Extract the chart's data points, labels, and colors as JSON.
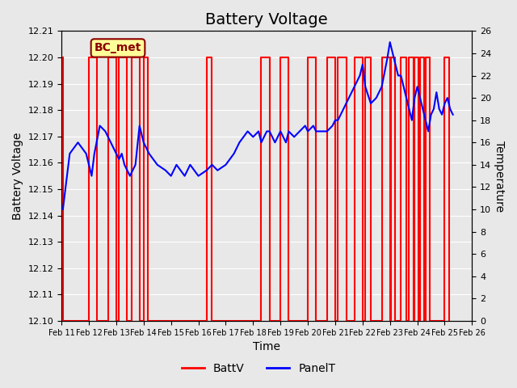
{
  "title": "Battery Voltage",
  "xlabel": "Time",
  "ylabel_left": "Battery Voltage",
  "ylabel_right": "Temperature",
  "ylim_left": [
    12.1,
    12.21
  ],
  "ylim_right": [
    0,
    26
  ],
  "yticks_left": [
    12.1,
    12.11,
    12.12,
    12.13,
    12.14,
    12.15,
    12.16,
    12.17,
    12.18,
    12.19,
    12.2,
    12.21
  ],
  "yticks_right": [
    0,
    2,
    4,
    6,
    8,
    10,
    12,
    14,
    16,
    18,
    20,
    22,
    24,
    26
  ],
  "xlim": [
    0,
    15
  ],
  "xtick_labels": [
    "Feb 11",
    "Feb 12",
    "Feb 13",
    "Feb 14",
    "Feb 15",
    "Feb 16",
    "Feb 17",
    "Feb 18",
    "Feb 19",
    "Feb 20",
    "Feb 21",
    "Feb 22",
    "Feb 23",
    "Feb 24",
    "Feb 25",
    "Feb 26"
  ],
  "annotation_text": "BC_met",
  "annotation_color": "#8B0000",
  "annotation_bg": "#FFFF99",
  "bg_color": "#E8E8E8",
  "plot_bg": "#E8E8E8",
  "grid_color": "white",
  "batt_color": "red",
  "panel_color": "blue",
  "batt_linewidth": 1.5,
  "panel_linewidth": 1.5,
  "title_fontsize": 14,
  "legend_fontsize": 10,
  "battv_data": [
    [
      0.05,
      12.2
    ],
    [
      0.05,
      12.1
    ],
    [
      1.0,
      12.1
    ],
    [
      1.0,
      12.2
    ],
    [
      1.3,
      12.2
    ],
    [
      1.3,
      12.1
    ],
    [
      1.7,
      12.1
    ],
    [
      1.7,
      12.2
    ],
    [
      2.0,
      12.2
    ],
    [
      2.0,
      12.1
    ],
    [
      2.1,
      12.1
    ],
    [
      2.1,
      12.2
    ],
    [
      2.4,
      12.2
    ],
    [
      2.4,
      12.1
    ],
    [
      2.55,
      12.1
    ],
    [
      2.55,
      12.2
    ],
    [
      2.85,
      12.2
    ],
    [
      2.85,
      12.1
    ],
    [
      3.0,
      12.1
    ],
    [
      3.0,
      12.2
    ],
    [
      3.15,
      12.2
    ],
    [
      3.15,
      12.1
    ],
    [
      5.3,
      12.1
    ],
    [
      5.3,
      12.2
    ],
    [
      5.5,
      12.2
    ],
    [
      5.5,
      12.1
    ],
    [
      7.3,
      12.1
    ],
    [
      7.3,
      12.2
    ],
    [
      7.6,
      12.2
    ],
    [
      7.6,
      12.1
    ],
    [
      8.0,
      12.1
    ],
    [
      8.0,
      12.2
    ],
    [
      8.3,
      12.2
    ],
    [
      8.3,
      12.1
    ],
    [
      9.0,
      12.1
    ],
    [
      9.0,
      12.2
    ],
    [
      9.3,
      12.2
    ],
    [
      9.3,
      12.1
    ],
    [
      9.7,
      12.1
    ],
    [
      9.7,
      12.2
    ],
    [
      10.0,
      12.2
    ],
    [
      10.0,
      12.1
    ],
    [
      10.1,
      12.1
    ],
    [
      10.1,
      12.2
    ],
    [
      10.4,
      12.2
    ],
    [
      10.4,
      12.1
    ],
    [
      10.7,
      12.1
    ],
    [
      10.7,
      12.2
    ],
    [
      11.0,
      12.2
    ],
    [
      11.0,
      12.1
    ],
    [
      11.1,
      12.1
    ],
    [
      11.1,
      12.2
    ],
    [
      11.3,
      12.2
    ],
    [
      11.3,
      12.1
    ],
    [
      11.7,
      12.1
    ],
    [
      11.7,
      12.2
    ],
    [
      12.0,
      12.2
    ],
    [
      12.0,
      12.1
    ],
    [
      12.05,
      12.1
    ],
    [
      12.05,
      12.2
    ],
    [
      12.2,
      12.2
    ],
    [
      12.2,
      12.1
    ],
    [
      12.4,
      12.1
    ],
    [
      12.4,
      12.2
    ],
    [
      12.6,
      12.2
    ],
    [
      12.6,
      12.1
    ],
    [
      12.7,
      12.1
    ],
    [
      12.7,
      12.2
    ],
    [
      12.85,
      12.2
    ],
    [
      12.85,
      12.1
    ],
    [
      12.9,
      12.1
    ],
    [
      12.9,
      12.2
    ],
    [
      13.05,
      12.2
    ],
    [
      13.05,
      12.1
    ],
    [
      13.1,
      12.1
    ],
    [
      13.1,
      12.2
    ],
    [
      13.25,
      12.2
    ],
    [
      13.25,
      12.1
    ],
    [
      13.3,
      12.1
    ],
    [
      13.3,
      12.2
    ],
    [
      13.45,
      12.2
    ],
    [
      13.45,
      12.1
    ],
    [
      14.0,
      12.1
    ],
    [
      14.0,
      12.2
    ],
    [
      14.15,
      12.2
    ],
    [
      14.15,
      12.1
    ]
  ],
  "panelt_data_x": [
    0.05,
    0.3,
    0.6,
    0.9,
    1.0,
    1.1,
    1.2,
    1.4,
    1.6,
    1.8,
    2.0,
    2.1,
    2.2,
    2.3,
    2.4,
    2.5,
    2.6,
    2.7,
    2.85,
    3.0,
    3.2,
    3.5,
    3.8,
    4.0,
    4.2,
    4.5,
    4.7,
    5.0,
    5.3,
    5.5,
    5.7,
    6.0,
    6.3,
    6.5,
    6.8,
    7.0,
    7.2,
    7.3,
    7.5,
    7.6,
    7.8,
    8.0,
    8.2,
    8.3,
    8.5,
    8.7,
    8.9,
    9.0,
    9.2,
    9.3,
    9.5,
    9.7,
    9.9,
    10.0,
    10.1,
    10.3,
    10.5,
    10.7,
    10.9,
    11.0,
    11.1,
    11.3,
    11.5,
    11.7,
    11.9,
    12.0,
    12.1,
    12.2,
    12.3,
    12.4,
    12.5,
    12.6,
    12.7,
    12.8,
    12.9,
    13.0,
    13.1,
    13.2,
    13.3,
    13.4,
    13.5,
    13.6,
    13.7,
    13.8,
    13.9,
    14.0,
    14.1,
    14.2,
    14.3
  ],
  "panelt_data_y": [
    10,
    15,
    16,
    15,
    14,
    13,
    15,
    17.5,
    17,
    16,
    15,
    14.5,
    15,
    14,
    13.5,
    13,
    13.5,
    14,
    17.5,
    16,
    15,
    14,
    13.5,
    13,
    14,
    13,
    14,
    13,
    13.5,
    14,
    13.5,
    14,
    15,
    16,
    17,
    16.5,
    17,
    16,
    17,
    17,
    16,
    17,
    16,
    17,
    16.5,
    17,
    17.5,
    17,
    17.5,
    17,
    17,
    17,
    17.5,
    18,
    18,
    19,
    20,
    21,
    22,
    23,
    21,
    19.5,
    20,
    21,
    23.5,
    25,
    24,
    23,
    22,
    22,
    21,
    20,
    19,
    18,
    20,
    21,
    20,
    19,
    18,
    17,
    18.5,
    19,
    20.5,
    19,
    18.5,
    19.5,
    20,
    19,
    18.5
  ]
}
